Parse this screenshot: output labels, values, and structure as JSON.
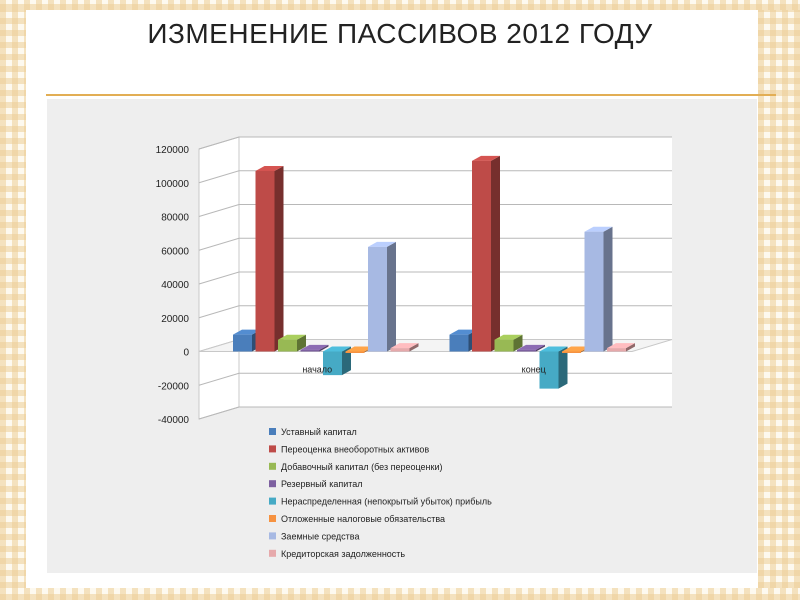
{
  "slide": {
    "title": "ИЗМЕНЕНИЕ ПАССИВОВ 2012 ГОДУ",
    "accent_color": "#e2ae54",
    "panel_color": "#eeeeee"
  },
  "chart_data": {
    "type": "bar",
    "title": "",
    "xlabel": "",
    "ylabel": "",
    "categories": [
      "начало",
      "конец"
    ],
    "ylim": [
      -40000,
      120000
    ],
    "yticks": [
      -40000,
      -20000,
      0,
      20000,
      40000,
      60000,
      80000,
      100000,
      120000
    ],
    "grid": true,
    "legend_position": "bottom",
    "series": [
      {
        "name": "Уставный капитал",
        "values": [
          10000,
          10000
        ],
        "color": "#4a7ebb"
      },
      {
        "name": "Переоценка внеоборотных активов",
        "values": [
          107000,
          113000
        ],
        "color": "#be4b48"
      },
      {
        "name": "Добавочный капитал  (без переоценки)",
        "values": [
          7000,
          7000
        ],
        "color": "#98b954"
      },
      {
        "name": "Резервный капитал",
        "values": [
          1000,
          1000
        ],
        "color": "#7d60a0"
      },
      {
        "name": "Нераспределенная (непокрытый убыток)  прибыль",
        "values": [
          -14000,
          -22000
        ],
        "color": "#46aac5"
      },
      {
        "name": "Отложенные налоговые  обязательства",
        "values": [
          -500,
          -500
        ],
        "color": "#f69240"
      },
      {
        "name": "Заемные средства",
        "values": [
          62000,
          71000
        ],
        "color": "#a7b9e3"
      },
      {
        "name": "Кредиторская задолженность",
        "values": [
          2000,
          2000
        ],
        "color": "#e6a9ab"
      }
    ]
  }
}
